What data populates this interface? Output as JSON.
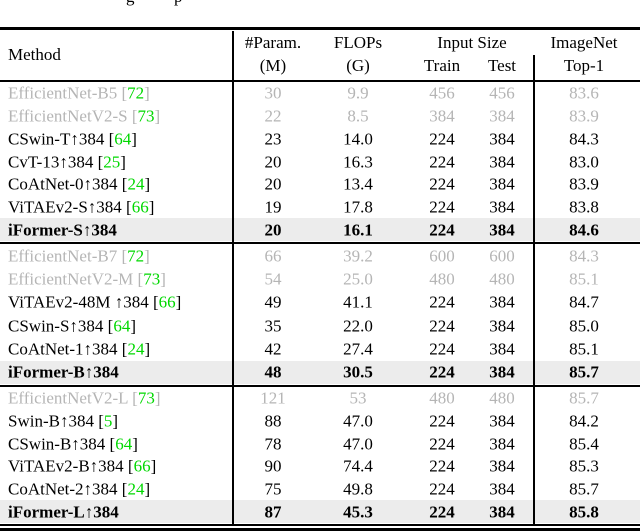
{
  "caption_fragments": {
    "left_glyph": "g",
    "right_glyph": "p"
  },
  "colors": {
    "citation_green": "#00d800",
    "muted_gray": "#b5b5b5",
    "highlight_row_bg": "#ececec",
    "rule_black": "#000000"
  },
  "header": {
    "method": "Method",
    "param_line1": "#Param.",
    "param_line2": "(M)",
    "flops_line1": "FLOPs",
    "flops_line2": "(G)",
    "input_size": "Input Size",
    "train": "Train",
    "test": "Test",
    "imagenet_line1": "ImageNet",
    "imagenet_line2": "Top-1"
  },
  "sections": [
    {
      "rows": [
        {
          "method": "EfficientNet-B5",
          "cite": "72",
          "param": "30",
          "flops": "9.9",
          "train": "456",
          "test": "456",
          "top1": "83.6",
          "style": "muted"
        },
        {
          "method": "EfficientNetV2-S",
          "cite": "73",
          "param": "22",
          "flops": "8.5",
          "train": "384",
          "test": "384",
          "top1": "83.9",
          "style": "muted"
        },
        {
          "method": "CSwin-T↑384",
          "cite": "64",
          "param": "23",
          "flops": "14.0",
          "train": "224",
          "test": "384",
          "top1": "84.3",
          "style": "normal"
        },
        {
          "method": "CvT-13↑384",
          "cite": "25",
          "param": "20",
          "flops": "16.3",
          "train": "224",
          "test": "384",
          "top1": "83.0",
          "style": "normal"
        },
        {
          "method": "CoAtNet-0↑384",
          "cite": "24",
          "param": "20",
          "flops": "13.4",
          "train": "224",
          "test": "384",
          "top1": "83.9",
          "style": "normal"
        },
        {
          "method": "ViTAEv2-S↑384",
          "cite": "66",
          "param": "19",
          "flops": "17.8",
          "train": "224",
          "test": "384",
          "top1": "83.8",
          "style": "normal"
        },
        {
          "method": "iFormer-S↑384",
          "cite": null,
          "param": "20",
          "flops": "16.1",
          "train": "224",
          "test": "384",
          "top1": "84.6",
          "style": "highlight"
        }
      ]
    },
    {
      "rows": [
        {
          "method": "EfficientNet-B7",
          "cite": "72",
          "param": "66",
          "flops": "39.2",
          "train": "600",
          "test": "600",
          "top1": "84.3",
          "style": "muted"
        },
        {
          "method": "EfficientNetV2-M",
          "cite": "73",
          "param": "54",
          "flops": "25.0",
          "train": "480",
          "test": "480",
          "top1": "85.1",
          "style": "muted"
        },
        {
          "method": "ViTAEv2-48M ↑384",
          "cite": "66",
          "param": "49",
          "flops": "41.1",
          "train": "224",
          "test": "384",
          "top1": "84.7",
          "style": "normal"
        },
        {
          "method": "CSwin-S↑384",
          "cite": "64",
          "param": "35",
          "flops": "22.0",
          "train": "224",
          "test": "384",
          "top1": "85.0",
          "style": "normal"
        },
        {
          "method": "CoAtNet-1↑384",
          "cite": "24",
          "param": "42",
          "flops": "27.4",
          "train": "224",
          "test": "384",
          "top1": "85.1",
          "style": "normal"
        },
        {
          "method": "iFormer-B↑384",
          "cite": null,
          "param": "48",
          "flops": "30.5",
          "train": "224",
          "test": "384",
          "top1": "85.7",
          "style": "highlight"
        }
      ]
    },
    {
      "rows": [
        {
          "method": "EfficientNetV2-L",
          "cite": "73",
          "param": "121",
          "flops": "53",
          "train": "480",
          "test": "480",
          "top1": "85.7",
          "style": "muted"
        },
        {
          "method": "Swin-B↑384",
          "cite": "5",
          "param": "88",
          "flops": "47.0",
          "train": "224",
          "test": "384",
          "top1": "84.2",
          "style": "normal"
        },
        {
          "method": "CSwin-B↑384",
          "cite": "64",
          "param": "78",
          "flops": "47.0",
          "train": "224",
          "test": "384",
          "top1": "85.4",
          "style": "normal"
        },
        {
          "method": "ViTAEv2-B↑384",
          "cite": "66",
          "param": "90",
          "flops": "74.4",
          "train": "224",
          "test": "384",
          "top1": "85.3",
          "style": "normal"
        },
        {
          "method": "CoAtNet-2↑384",
          "cite": "24",
          "param": "75",
          "flops": "49.8",
          "train": "224",
          "test": "384",
          "top1": "85.7",
          "style": "normal"
        },
        {
          "method": "iFormer-L↑384",
          "cite": null,
          "param": "87",
          "flops": "45.3",
          "train": "224",
          "test": "384",
          "top1": "85.8",
          "style": "highlight"
        }
      ]
    }
  ]
}
